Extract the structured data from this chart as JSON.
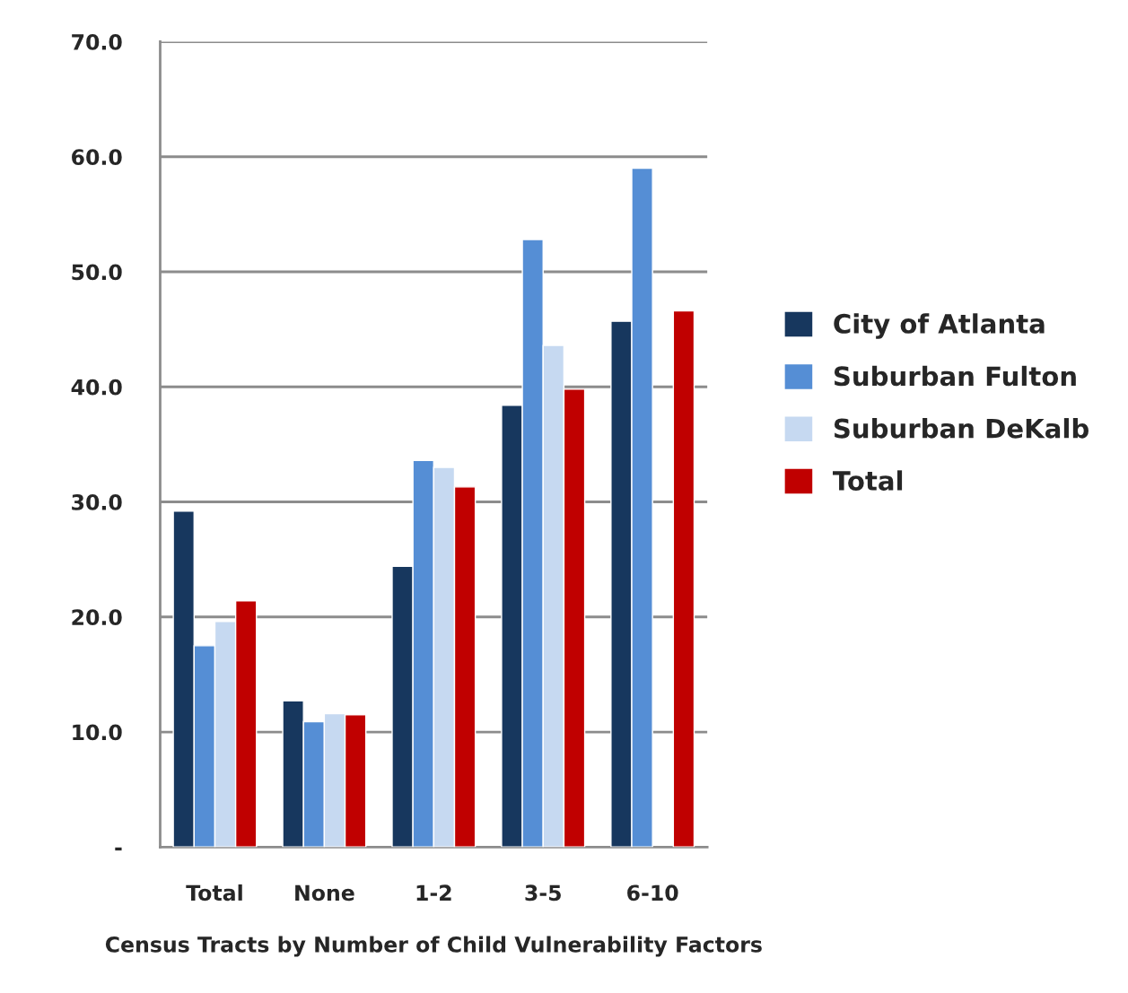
{
  "chart_data": {
    "type": "bar",
    "xlabel": "Census Tracts by Number of Child Vulnerability Factors",
    "categories": [
      "Total",
      "None",
      "1-2",
      "3-5",
      "6-10"
    ],
    "series": [
      {
        "name": "City of Atlanta",
        "color": "#17375e",
        "values": [
          29.2,
          12.7,
          24.4,
          38.4,
          45.7
        ]
      },
      {
        "name": "Suburban Fulton",
        "color": "#558ed5",
        "values": [
          17.5,
          10.9,
          33.6,
          52.8,
          59.0
        ]
      },
      {
        "name": "Suburban DeKalb",
        "color": "#c6d9f1",
        "values": [
          19.6,
          11.6,
          33.0,
          43.6,
          null
        ]
      },
      {
        "name": "Total",
        "color": "#c00000",
        "values": [
          21.4,
          11.5,
          31.3,
          39.8,
          46.6
        ]
      }
    ],
    "ylim": [
      0,
      70
    ],
    "yticks": [
      {
        "value": 0,
        "label": "-"
      },
      {
        "value": 10,
        "label": "10.0"
      },
      {
        "value": 20,
        "label": "20.0"
      },
      {
        "value": 30,
        "label": "30.0"
      },
      {
        "value": 40,
        "label": "40.0"
      },
      {
        "value": 50,
        "label": "50.0"
      },
      {
        "value": 60,
        "label": "60.0"
      },
      {
        "value": 70,
        "label": "70.0"
      }
    ],
    "grid": "y",
    "legend": "right"
  }
}
